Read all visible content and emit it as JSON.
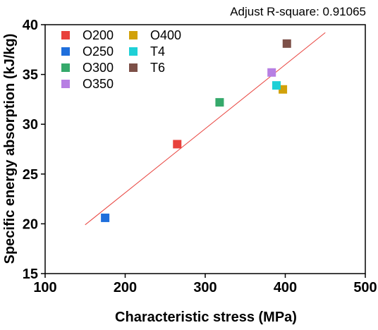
{
  "chart_data": {
    "type": "scatter",
    "annotation": "Adjust R-square: 0.91065",
    "xlabel": "Characteristic stress (MPa)",
    "ylabel": "Specific energy absorption (kJ/kg)",
    "xlim": [
      100,
      500
    ],
    "ylim": [
      15,
      40
    ],
    "xticks": [
      100,
      200,
      300,
      400,
      500
    ],
    "yticks": [
      15,
      20,
      25,
      30,
      35,
      40
    ],
    "grid": false,
    "legend_position": "top-left",
    "series": [
      {
        "name": "O200",
        "color": "#e8413c",
        "x": 265,
        "y": 28.0
      },
      {
        "name": "O250",
        "color": "#1f6fdc",
        "x": 175,
        "y": 20.6
      },
      {
        "name": "O300",
        "color": "#35a96b",
        "x": 318,
        "y": 32.2
      },
      {
        "name": "O350",
        "color": "#b77fe3",
        "x": 383,
        "y": 35.2
      },
      {
        "name": "O400",
        "color": "#d1a10a",
        "x": 397,
        "y": 33.5
      },
      {
        "name": "T4",
        "color": "#1fd0d6",
        "x": 389,
        "y": 33.9
      },
      {
        "name": "T6",
        "color": "#7d5048",
        "x": 402,
        "y": 38.1
      }
    ],
    "fit_line": {
      "color": "#e8413c",
      "x": [
        150,
        450
      ],
      "y": [
        19.9,
        39.2
      ]
    }
  }
}
